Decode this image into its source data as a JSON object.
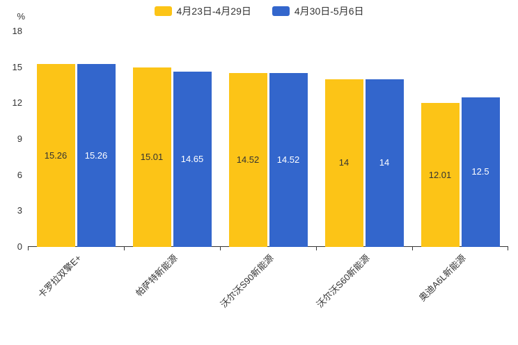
{
  "chart_data": {
    "type": "bar",
    "title": "",
    "unit_label": "%",
    "categories": [
      "卡罗拉双擎E+",
      "帕萨特新能源",
      "沃尔沃S90新能源",
      "沃尔沃S60新能源",
      "奥迪A6L新能源"
    ],
    "series": [
      {
        "name": "4月23日-4月29日",
        "color": "#FCC417",
        "label_color": "#333333",
        "values": [
          15.26,
          15.01,
          14.52,
          14,
          12.01
        ]
      },
      {
        "name": "4月30日-5月6日",
        "color": "#3366CC",
        "label_color": "#FFFFFF",
        "values": [
          15.26,
          14.65,
          14.52,
          14,
          12.5
        ]
      }
    ],
    "y_ticks": [
      0,
      3,
      6,
      9,
      12,
      15,
      18
    ],
    "ylim": [
      0,
      18
    ],
    "grid": false,
    "legend_position": "top"
  }
}
